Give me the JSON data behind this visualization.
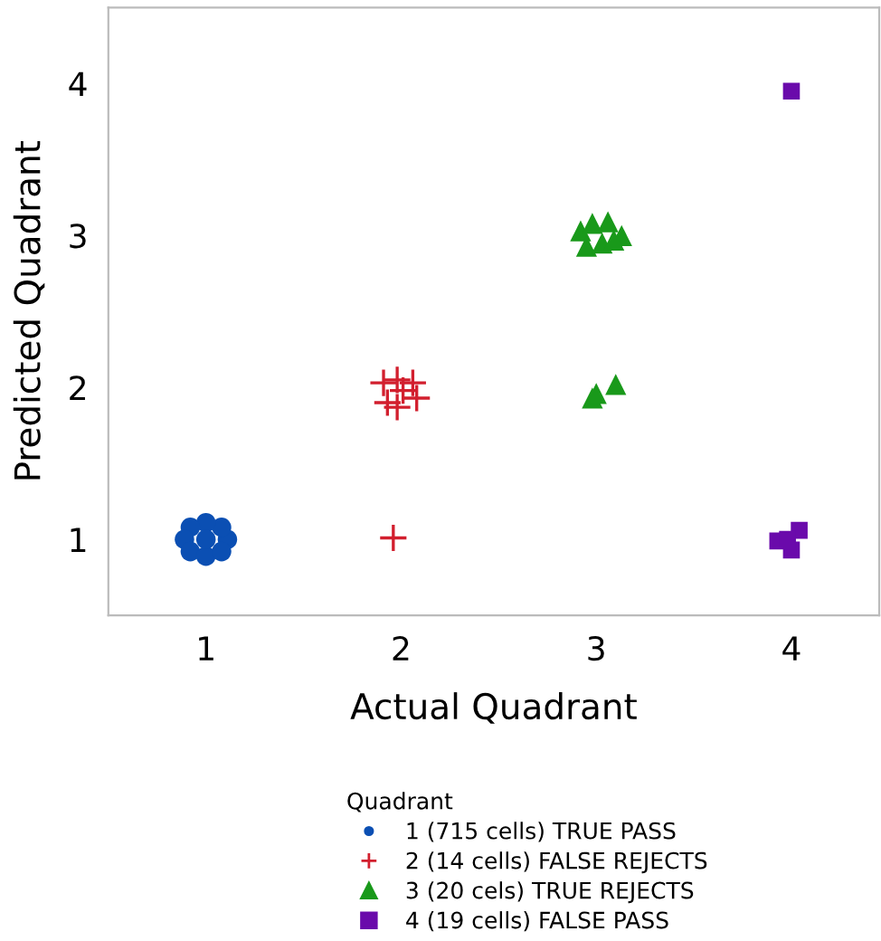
{
  "chart_data": {
    "type": "scatter",
    "xlabel": "Actual Quadrant",
    "ylabel": "Predicted Quadrant",
    "legend_title": "Quadrant",
    "legend": "bottom",
    "grid": false,
    "xlim": [
      0.5,
      4.45
    ],
    "ylim": [
      0.5,
      4.5
    ],
    "xticks": [
      1,
      2,
      3,
      4
    ],
    "yticks": [
      1,
      2,
      3,
      4
    ],
    "series": [
      {
        "name": "1 (715 cells) TRUE PASS",
        "color": "#0b4fb3",
        "marker": "circle",
        "x": [
          1.11,
          1.08,
          1.0,
          0.92,
          0.89,
          0.92,
          1.0,
          1.08,
          1.0
        ],
        "values": [
          1.0,
          1.08,
          1.11,
          1.08,
          1.0,
          0.92,
          0.89,
          0.92,
          1.0
        ]
      },
      {
        "name": "2 (14 cells) FALSE REJECTS",
        "color": "#d21f2e",
        "marker": "cross",
        "x": [
          1.91,
          1.98,
          2.06,
          1.93,
          2.08,
          1.98,
          2.01,
          1.96
        ],
        "values": [
          2.03,
          2.05,
          2.03,
          1.9,
          1.93,
          1.87,
          1.98,
          1.01
        ]
      },
      {
        "name": "3 (20 cels) TRUE REJECTS",
        "color": "#19991a",
        "marker": "triangle",
        "x": [
          2.92,
          2.98,
          3.06,
          3.13,
          2.95,
          3.03,
          3.09,
          2.98,
          3.1,
          3.0
        ],
        "values": [
          3.03,
          3.08,
          3.09,
          3.0,
          2.93,
          2.95,
          2.97,
          1.93,
          2.02,
          1.96
        ]
      },
      {
        "name": "4 (19 cells) FALSE PASS",
        "color": "#6a0aab",
        "marker": "square",
        "x": [
          4.0,
          3.93,
          4.04,
          4.0,
          3.98
        ],
        "values": [
          3.95,
          0.99,
          1.06,
          0.93,
          1.0
        ]
      }
    ]
  }
}
